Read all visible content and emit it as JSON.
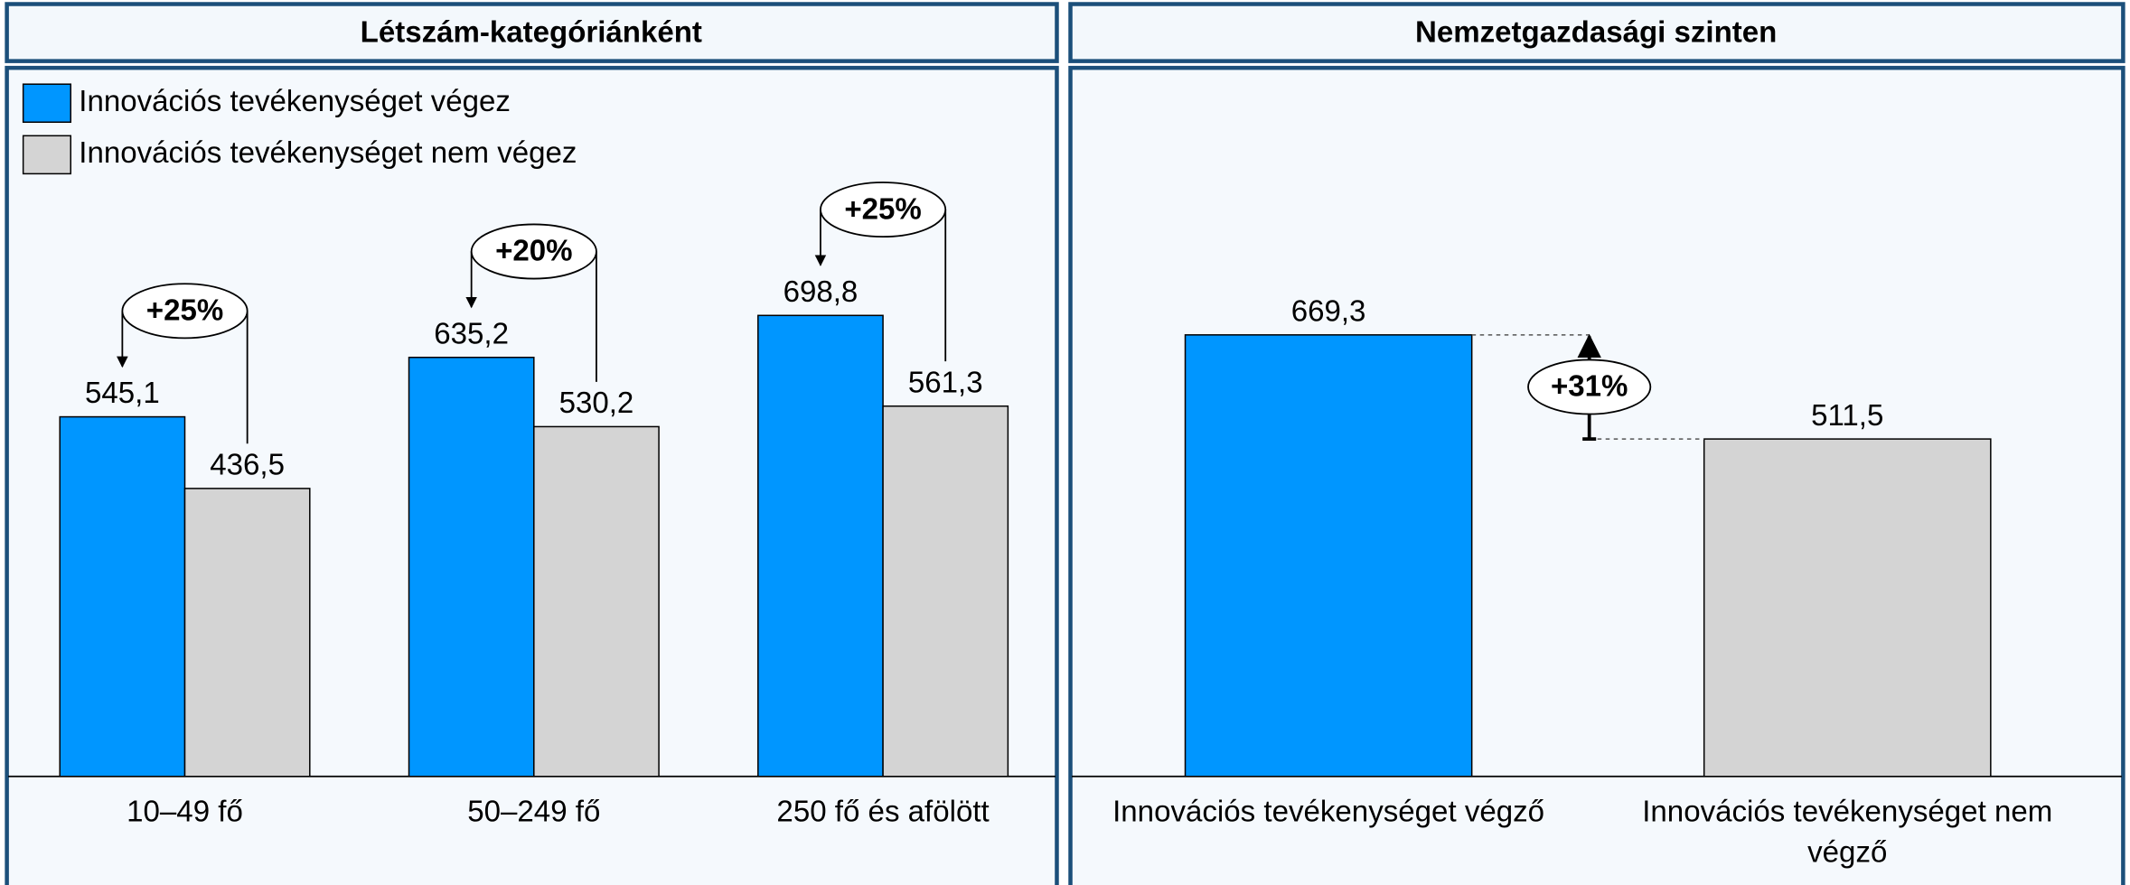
{
  "chart_data": [
    {
      "type": "bar",
      "title": "Létszám-kategóriánként",
      "categories": [
        "10–49 fő",
        "50–249 fő",
        "250 fő és afölött"
      ],
      "series": [
        {
          "name": "Innovációs tevékenységet végez",
          "color": "#0096ff",
          "values": [
            545.1,
            635.2,
            698.8
          ],
          "value_labels": [
            "545,1",
            "635,2",
            "698,8"
          ]
        },
        {
          "name": "Innovációs tevékenységet nem végez",
          "color": "#d4d4d4",
          "values": [
            436.5,
            530.2,
            561.3
          ],
          "value_labels": [
            "436,5",
            "530,2",
            "561,3"
          ]
        }
      ],
      "annotations": [
        "+25%",
        "+20%",
        "+25%"
      ],
      "ylim": [
        0,
        1000
      ],
      "legend": "top-left"
    },
    {
      "type": "bar",
      "title": "Nemzetgazdasági szinten",
      "categories": [
        "Innovációs tevékenységet végző",
        "Innovációs tevékenységet nem végző"
      ],
      "values": [
        669.3,
        511.5
      ],
      "value_labels": [
        "669,3",
        "511,5"
      ],
      "colors": [
        "#0096ff",
        "#d4d4d4"
      ],
      "annotations": [
        "+31%"
      ],
      "ylim": [
        0,
        1000
      ]
    }
  ]
}
